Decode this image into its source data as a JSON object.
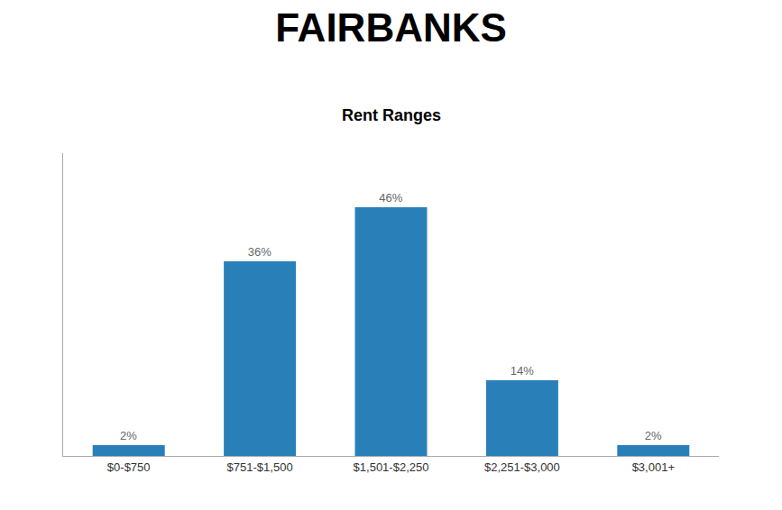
{
  "chart_data": {
    "type": "bar",
    "title": "FAIRBANKS",
    "subtitle": "Rent Ranges",
    "categories": [
      "$0-$750",
      "$751-$1,500",
      "$1,501-$2,250",
      "$2,251-$3,000",
      "$3,001+"
    ],
    "values": [
      2,
      36,
      46,
      14,
      2
    ],
    "value_labels": [
      "2%",
      "36%",
      "46%",
      "14%",
      "2%"
    ],
    "color": "#2980b9",
    "ylim": [
      0,
      56
    ],
    "yticks": [],
    "data_labels": true,
    "tick_labels": "x",
    "grid": false
  }
}
